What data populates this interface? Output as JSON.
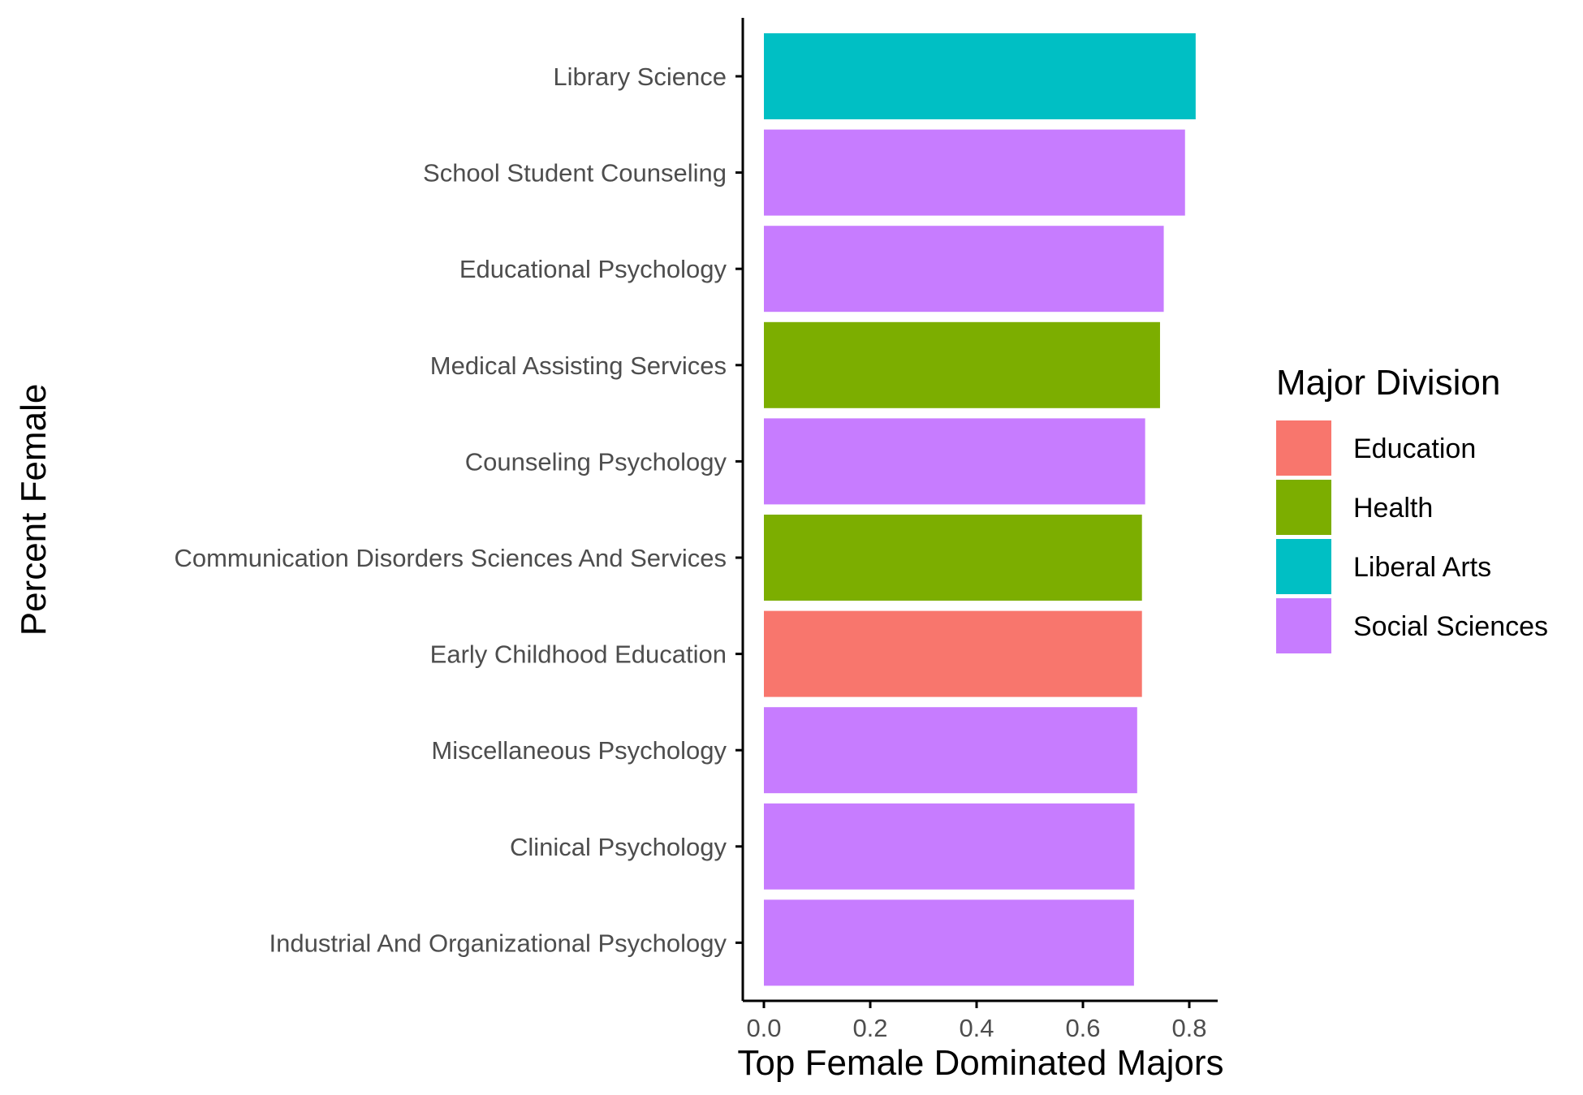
{
  "chart_data": {
    "type": "bar",
    "orientation": "horizontal",
    "xlabel": "Top Female Dominated Majors",
    "ylabel": "Percent Female",
    "xlim": [
      0,
      0.85
    ],
    "x_ticks": [
      0.0,
      0.2,
      0.4,
      0.6,
      0.8
    ],
    "x_tick_labels": [
      "0.0",
      "0.2",
      "0.4",
      "0.6",
      "0.8"
    ],
    "grid": false,
    "legend": {
      "title": "Major Division",
      "placement": "right",
      "entries": [
        {
          "label": "Education",
          "color": "#F8766D"
        },
        {
          "label": "Health",
          "color": "#7CAE00"
        },
        {
          "label": "Liberal Arts",
          "color": "#00BFC4"
        },
        {
          "label": "Social Sciences",
          "color": "#C77CFF"
        }
      ]
    },
    "categories": [
      "Library Science",
      "School Student Counseling",
      "Educational Psychology",
      "Medical Assisting Services",
      "Counseling Psychology",
      "Communication Disorders Sciences And Services",
      "Early Childhood Education",
      "Miscellaneous Psychology",
      "Clinical Psychology",
      "Industrial And Organizational Psychology"
    ],
    "values": [
      0.812,
      0.792,
      0.752,
      0.745,
      0.717,
      0.711,
      0.711,
      0.702,
      0.697,
      0.696
    ],
    "groups": [
      "Liberal Arts",
      "Social Sciences",
      "Social Sciences",
      "Health",
      "Social Sciences",
      "Health",
      "Education",
      "Social Sciences",
      "Social Sciences",
      "Social Sciences"
    ]
  }
}
